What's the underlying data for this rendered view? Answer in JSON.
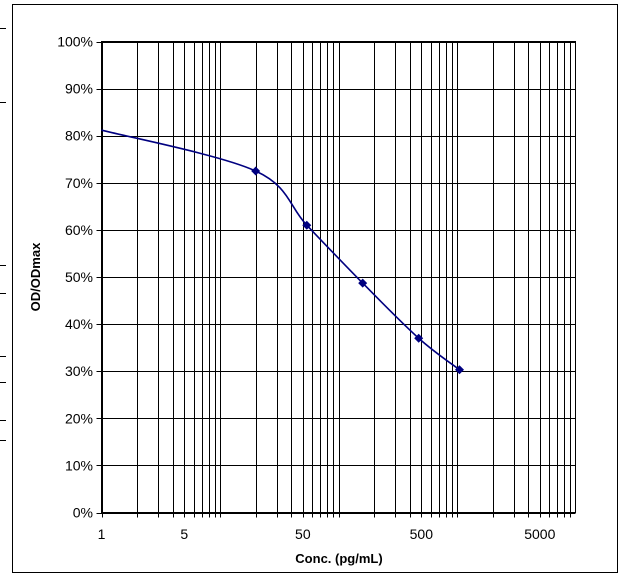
{
  "chart_data": {
    "type": "line",
    "title": "",
    "xlabel": "Conc. (pg/mL)",
    "ylabel": "OD/ODmax",
    "x_scale": "log",
    "xlim": [
      1,
      10000
    ],
    "ylim": [
      0,
      100
    ],
    "x_tick_labels": [
      "1",
      "5",
      "50",
      "500",
      "5000"
    ],
    "y_tick_labels": [
      "0%",
      "10%",
      "20%",
      "30%",
      "40%",
      "50%",
      "60%",
      "70%",
      "80%",
      "90%",
      "100%"
    ],
    "grid": true,
    "legend": "none",
    "series": [
      {
        "color": "#000080",
        "marker": "diamond",
        "points": [
          {
            "x": 20,
            "y": 72.5
          },
          {
            "x": 54,
            "y": 61
          },
          {
            "x": 160,
            "y": 48.7
          },
          {
            "x": 475,
            "y": 37
          },
          {
            "x": 1050,
            "y": 30.3
          }
        ]
      }
    ],
    "curve_start": {
      "x": 1,
      "y": 81.2
    }
  }
}
